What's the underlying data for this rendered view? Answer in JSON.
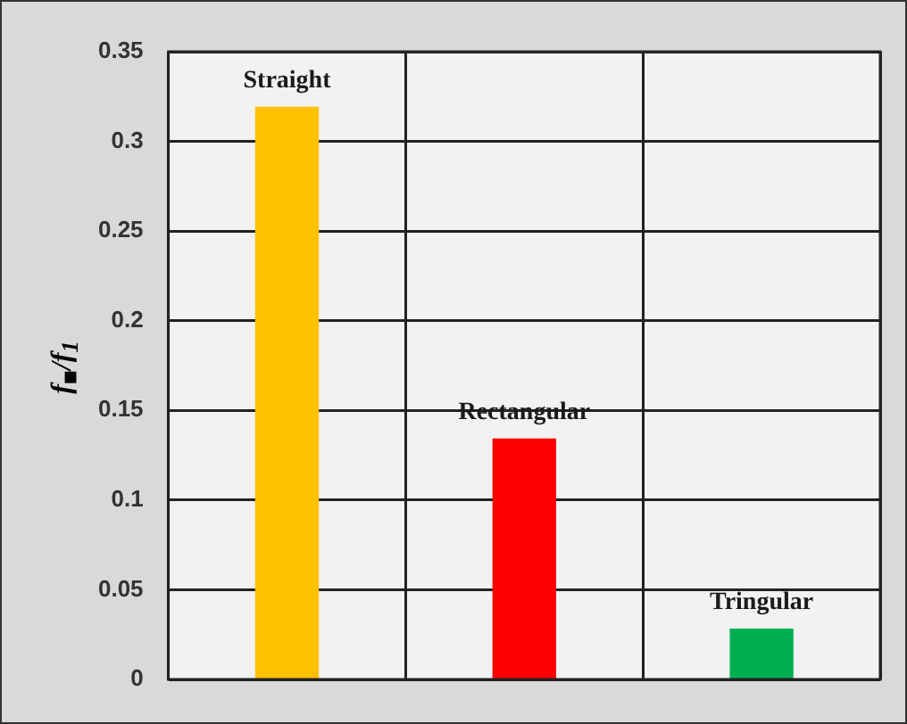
{
  "chart_data": {
    "type": "bar",
    "ylabel": "f$_{■}$/f$_{1}$",
    "categories": [
      "Straight",
      "Rectangular",
      "Tringular"
    ],
    "values": [
      0.319,
      0.134,
      0.028
    ],
    "colors": [
      "#ffc000",
      "#ff0000",
      "#00b050"
    ],
    "ylim": [
      0,
      0.35
    ],
    "yticks": [
      0,
      0.05,
      0.1,
      0.15,
      0.2,
      0.25,
      0.3,
      0.35
    ],
    "grid": true,
    "tick_labels": "y"
  }
}
